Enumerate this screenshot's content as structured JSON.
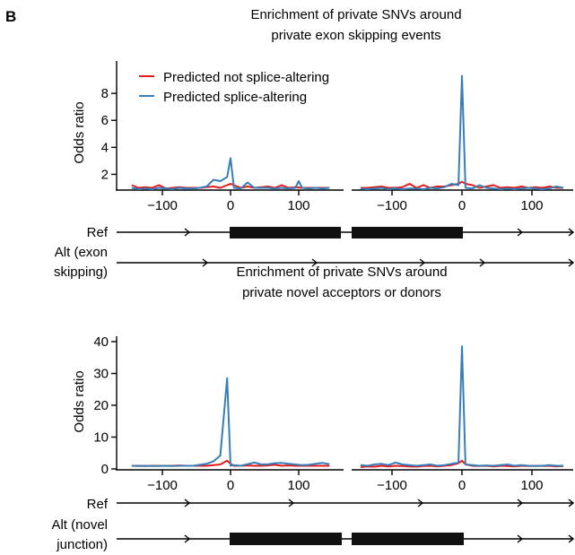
{
  "panel_letter": "B",
  "sections": [
    {
      "title_lines": [
        "Enrichment of private SNVs around",
        "private exon skipping events"
      ],
      "ylabel": "Odds ratio",
      "track_labels": [
        [
          "Ref"
        ],
        [
          "Alt (exon",
          "skipping)"
        ]
      ]
    },
    {
      "title_lines": [
        "Enrichment of private SNVs around",
        "private novel acceptors or donors"
      ],
      "ylabel": "Odds ratio",
      "track_labels": [
        [
          "Ref"
        ],
        [
          "Alt (novel",
          "junction)"
        ]
      ]
    }
  ],
  "legend": [
    {
      "label": "Predicted not splice-altering",
      "color": "#e41a1c"
    },
    {
      "label": "Predicted splice-altering",
      "color": "#377eb8"
    }
  ],
  "chart_data": [
    {
      "type": "line",
      "title": "Enrichment of private SNVs around private exon skipping events (left)",
      "ylabel": "Odds ratio",
      "xlim": [
        -150,
        160
      ],
      "ylim": [
        0.9,
        10
      ],
      "xticks": [
        -100,
        0,
        100
      ],
      "xtick_labels": [
        "−100",
        "0",
        "100"
      ],
      "yticks": [
        2,
        4,
        6,
        8
      ],
      "yticklabels": [
        "2",
        "4",
        "6",
        "8"
      ],
      "legend": "top-left",
      "series": [
        {
          "name": "Predicted not splice-altering",
          "color": "#e41a1c",
          "x": [
            -145,
            -135,
            -125,
            -115,
            -105,
            -95,
            -85,
            -75,
            -65,
            -55,
            -45,
            -35,
            -25,
            -15,
            -5,
            0,
            5,
            15,
            25,
            35,
            45,
            55,
            65,
            75,
            85,
            95,
            105,
            115,
            125,
            135,
            145
          ],
          "y": [
            1.2,
            1.0,
            1.05,
            1.0,
            1.2,
            0.95,
            1.0,
            1.05,
            1.0,
            1.0,
            1.0,
            1.05,
            1.1,
            1.0,
            1.2,
            1.3,
            1.2,
            1.0,
            1.1,
            1.0,
            1.05,
            1.1,
            1.0,
            1.2,
            1.0,
            1.05,
            1.0,
            1.0,
            1.0,
            1.0,
            1.0
          ]
        },
        {
          "name": "Predicted splice-altering",
          "color": "#377eb8",
          "x": [
            -145,
            -135,
            -125,
            -115,
            -105,
            -95,
            -85,
            -75,
            -65,
            -55,
            -45,
            -35,
            -25,
            -15,
            -5,
            0,
            5,
            15,
            25,
            35,
            45,
            55,
            65,
            75,
            85,
            95,
            100,
            105,
            115,
            125,
            135,
            145
          ],
          "y": [
            1.0,
            0.9,
            0.95,
            0.9,
            1.0,
            0.95,
            0.9,
            1.0,
            0.95,
            0.95,
            1.0,
            1.1,
            1.6,
            1.5,
            1.8,
            3.2,
            1.0,
            0.95,
            1.4,
            1.0,
            1.0,
            1.0,
            0.95,
            1.0,
            0.95,
            1.0,
            1.5,
            1.0,
            0.95,
            1.0,
            0.95,
            1.0
          ]
        }
      ]
    },
    {
      "type": "line",
      "title": "Enrichment of private SNVs around private exon skipping events (right)",
      "xlim": [
        -150,
        150
      ],
      "ylim": [
        0.9,
        10
      ],
      "xticks": [
        -100,
        0,
        100
      ],
      "xtick_labels": [
        "−100",
        "0",
        "100"
      ],
      "series": [
        {
          "name": "Predicted not splice-altering",
          "color": "#e41a1c",
          "x": [
            -145,
            -135,
            -125,
            -115,
            -105,
            -95,
            -85,
            -75,
            -65,
            -55,
            -45,
            -35,
            -25,
            -15,
            -5,
            0,
            5,
            15,
            25,
            35,
            45,
            55,
            65,
            75,
            85,
            95,
            105,
            115,
            125,
            135,
            145
          ],
          "y": [
            1.0,
            1.0,
            1.05,
            1.1,
            1.0,
            1.0,
            1.05,
            1.3,
            1.0,
            1.2,
            1.0,
            1.1,
            1.1,
            1.2,
            1.3,
            1.45,
            1.3,
            1.2,
            1.0,
            1.1,
            1.2,
            1.0,
            1.05,
            1.0,
            1.1,
            1.0,
            1.05,
            1.0,
            1.1,
            1.0,
            1.0
          ]
        },
        {
          "name": "Predicted splice-altering",
          "color": "#377eb8",
          "x": [
            -145,
            -135,
            -125,
            -115,
            -105,
            -95,
            -85,
            -75,
            -65,
            -55,
            -45,
            -35,
            -25,
            -15,
            -5,
            0,
            5,
            15,
            25,
            35,
            45,
            55,
            65,
            75,
            85,
            95,
            105,
            115,
            125,
            135,
            145
          ],
          "y": [
            0.95,
            0.9,
            0.95,
            1.0,
            0.9,
            0.95,
            0.9,
            0.95,
            0.95,
            0.9,
            1.0,
            0.95,
            1.05,
            1.3,
            1.2,
            9.3,
            1.0,
            0.95,
            1.2,
            1.0,
            0.95,
            0.9,
            0.95,
            0.9,
            0.95,
            1.0,
            0.95,
            0.9,
            0.95,
            1.1,
            1.0
          ]
        }
      ]
    },
    {
      "type": "line",
      "title": "Enrichment of private SNVs around private novel acceptors or donors (left)",
      "ylabel": "Odds ratio",
      "xlim": [
        -150,
        160
      ],
      "ylim": [
        0,
        40
      ],
      "xticks": [
        -100,
        0,
        100
      ],
      "xtick_labels": [
        "−100",
        "0",
        "100"
      ],
      "yticks": [
        0,
        10,
        20,
        30,
        40
      ],
      "yticklabels": [
        "0",
        "10",
        "20",
        "30",
        "40"
      ],
      "series": [
        {
          "name": "Predicted not splice-altering",
          "color": "#e41a1c",
          "x": [
            -145,
            -135,
            -125,
            -115,
            -105,
            -95,
            -85,
            -75,
            -65,
            -55,
            -45,
            -35,
            -25,
            -15,
            -5,
            0,
            5,
            15,
            25,
            35,
            45,
            55,
            65,
            75,
            85,
            95,
            105,
            115,
            125,
            135,
            145
          ],
          "y": [
            1.0,
            1.0,
            0.9,
            1.0,
            1.0,
            1.0,
            1.0,
            1.1,
            1.0,
            1.0,
            1.0,
            1.0,
            1.2,
            1.4,
            2.6,
            1.6,
            1.0,
            1.0,
            1.1,
            1.0,
            1.0,
            1.1,
            1.3,
            1.0,
            1.1,
            1.0,
            1.0,
            1.0,
            1.0,
            1.0,
            1.0
          ]
        },
        {
          "name": "Predicted splice-altering",
          "color": "#377eb8",
          "x": [
            -145,
            -135,
            -125,
            -115,
            -105,
            -95,
            -85,
            -75,
            -65,
            -55,
            -45,
            -35,
            -25,
            -15,
            -5,
            0,
            5,
            15,
            25,
            35,
            45,
            55,
            65,
            75,
            85,
            95,
            105,
            115,
            125,
            135,
            145
          ],
          "y": [
            1.0,
            0.9,
            1.0,
            0.9,
            0.9,
            1.0,
            0.9,
            1.0,
            1.0,
            1.0,
            1.3,
            1.6,
            2.4,
            4.2,
            28.5,
            1.0,
            1.2,
            1.0,
            1.5,
            2.0,
            1.4,
            1.5,
            1.8,
            1.9,
            1.6,
            1.4,
            1.2,
            1.3,
            1.6,
            1.9,
            1.5
          ]
        }
      ]
    },
    {
      "type": "line",
      "title": "Enrichment of private SNVs around private novel acceptors or donors (right)",
      "xlim": [
        -150,
        150
      ],
      "ylim": [
        0,
        40
      ],
      "xticks": [
        -100,
        0,
        100
      ],
      "xtick_labels": [
        "−100",
        "0",
        "100"
      ],
      "series": [
        {
          "name": "Predicted not splice-altering",
          "color": "#e41a1c",
          "x": [
            -145,
            -135,
            -125,
            -115,
            -105,
            -95,
            -85,
            -75,
            -65,
            -55,
            -45,
            -35,
            -25,
            -15,
            -5,
            0,
            5,
            15,
            25,
            35,
            45,
            55,
            65,
            75,
            85,
            95,
            105,
            115,
            125,
            135,
            145
          ],
          "y": [
            0.6,
            0.8,
            0.7,
            1.0,
            0.8,
            1.0,
            0.9,
            0.8,
            0.7,
            0.9,
            1.0,
            0.8,
            1.0,
            1.2,
            1.8,
            2.6,
            1.4,
            1.0,
            0.9,
            1.0,
            0.8,
            1.0,
            0.9,
            0.8,
            1.0,
            0.9,
            1.0,
            0.9,
            1.0,
            0.8,
            0.9
          ]
        },
        {
          "name": "Predicted splice-altering",
          "color": "#377eb8",
          "x": [
            -145,
            -135,
            -125,
            -115,
            -105,
            -95,
            -85,
            -75,
            -65,
            -55,
            -45,
            -35,
            -25,
            -15,
            -5,
            0,
            5,
            15,
            25,
            35,
            45,
            55,
            65,
            75,
            85,
            95,
            105,
            115,
            125,
            135,
            145
          ],
          "y": [
            1.2,
            1.0,
            1.4,
            1.6,
            1.2,
            2.0,
            1.4,
            1.2,
            1.0,
            1.2,
            1.4,
            1.0,
            1.2,
            1.6,
            2.0,
            38.5,
            1.4,
            1.2,
            1.0,
            1.1,
            1.0,
            1.2,
            1.4,
            1.0,
            1.2,
            1.0,
            0.9,
            1.0,
            1.2,
            1.0,
            1.0
          ]
        }
      ]
    }
  ]
}
